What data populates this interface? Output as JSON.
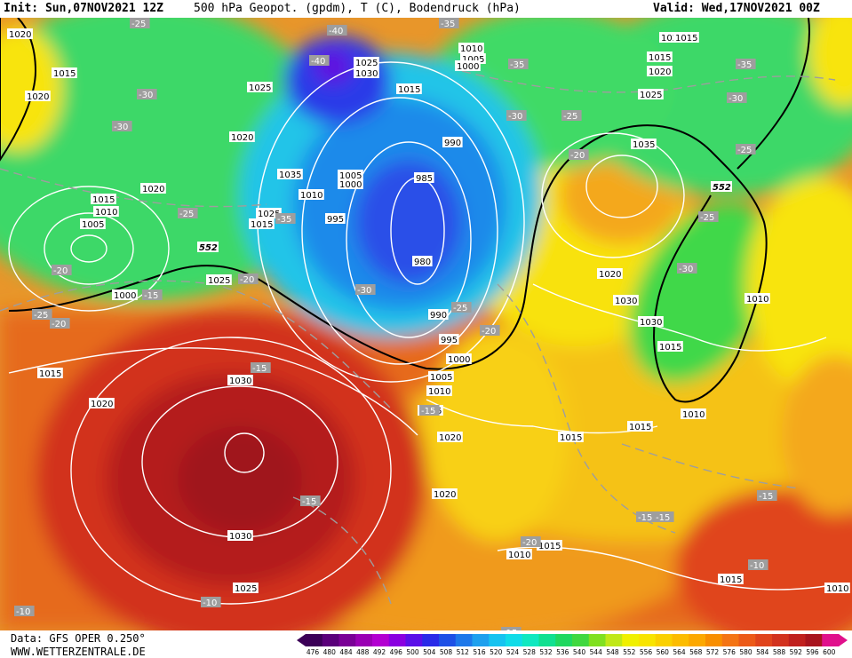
{
  "header": {
    "init": "Init: Sun,07NOV2021 12Z",
    "title": "500 hPa Geopot. (gpdm), T (C), Bodendruck (hPa)",
    "valid": "Valid: Wed,17NOV2021 00Z"
  },
  "footer": {
    "data_source": "Data: GFS OPER 0.250°",
    "website": "WWW.WETTERZENTRALE.DE"
  },
  "legend": {
    "levels": [
      "476",
      "480",
      "484",
      "488",
      "492",
      "496",
      "500",
      "504",
      "508",
      "512",
      "516",
      "520",
      "524",
      "528",
      "532",
      "536",
      "540",
      "544",
      "548",
      "552",
      "556",
      "560",
      "564",
      "568",
      "572",
      "576",
      "580",
      "584",
      "588",
      "592",
      "596",
      "600"
    ],
    "colors": [
      "#3b0057",
      "#5a007a",
      "#7a0096",
      "#9a00b4",
      "#b300d1",
      "#8a00e0",
      "#5a10e8",
      "#2a2ae8",
      "#1e50e6",
      "#1e78ea",
      "#1ea0ee",
      "#16c3f0",
      "#10dce8",
      "#10e8c0",
      "#10e090",
      "#20d860",
      "#40d840",
      "#80e020",
      "#c0e818",
      "#f0f000",
      "#f8e400",
      "#fad000",
      "#fcbc00",
      "#fca800",
      "#f88e00",
      "#f47414",
      "#ec5a18",
      "#e0441c",
      "#d2321e",
      "#c0201e",
      "#a8141e",
      "#e0108c"
    ]
  },
  "map": {
    "contour_552_label": "552",
    "pressure_labels": [
      {
        "t": "1010"
      },
      {
        "t": "1015"
      },
      {
        "t": "1020"
      },
      {
        "t": "1025"
      },
      {
        "t": "1020"
      },
      {
        "t": "1015"
      },
      {
        "t": "1010"
      },
      {
        "t": "1005"
      },
      {
        "t": "1000"
      },
      {
        "t": "1020"
      },
      {
        "t": "1025"
      },
      {
        "t": "1015"
      },
      {
        "t": "1025"
      },
      {
        "t": "1030"
      },
      {
        "t": "1025"
      },
      {
        "t": "1020"
      },
      {
        "t": "1035"
      },
      {
        "t": "1005"
      },
      {
        "t": "1000"
      },
      {
        "t": "1010"
      },
      {
        "t": "995"
      },
      {
        "t": "1010"
      },
      {
        "t": "1005"
      },
      {
        "t": "1000"
      },
      {
        "t": "1015"
      },
      {
        "t": "990"
      },
      {
        "t": "985"
      },
      {
        "t": "980"
      },
      {
        "t": "990"
      },
      {
        "t": "995"
      },
      {
        "t": "1000"
      },
      {
        "t": "1005"
      },
      {
        "t": "1010"
      },
      {
        "t": "1015"
      },
      {
        "t": "1020"
      },
      {
        "t": "1015"
      },
      {
        "t": "1020"
      },
      {
        "t": "1025"
      },
      {
        "t": "1030"
      },
      {
        "t": "1035"
      },
      {
        "t": "1030"
      },
      {
        "t": "1025"
      },
      {
        "t": "1020"
      },
      {
        "t": "1015"
      },
      {
        "t": "1010"
      },
      {
        "t": "1010"
      },
      {
        "t": "1015"
      },
      {
        "t": "1015"
      },
      {
        "t": "1020"
      },
      {
        "t": "1015"
      },
      {
        "t": "1010"
      },
      {
        "t": "1015"
      },
      {
        "t": "1015"
      },
      {
        "t": "1010"
      },
      {
        "t": "1020"
      },
      {
        "t": "1030"
      },
      {
        "t": "1030"
      },
      {
        "t": "1025"
      },
      {
        "t": "1020"
      },
      {
        "t": "1005"
      },
      {
        "t": "1015"
      }
    ],
    "temperature_labels": [
      {
        "t": "-25"
      },
      {
        "t": "-30"
      },
      {
        "t": "-30"
      },
      {
        "t": "-25"
      },
      {
        "t": "-20"
      },
      {
        "t": "-25"
      },
      {
        "t": "-20"
      },
      {
        "t": "-15"
      },
      {
        "t": "-20"
      },
      {
        "t": "-40"
      },
      {
        "t": "-40"
      },
      {
        "t": "-35"
      },
      {
        "t": "-35"
      },
      {
        "t": "-30"
      },
      {
        "t": "-25"
      },
      {
        "t": "-35"
      },
      {
        "t": "-30"
      },
      {
        "t": "-25"
      },
      {
        "t": "-20"
      },
      {
        "t": "-15"
      },
      {
        "t": "-35"
      },
      {
        "t": "-30"
      },
      {
        "t": "-25"
      },
      {
        "t": "-20"
      },
      {
        "t": "-25"
      },
      {
        "t": "-30"
      },
      {
        "t": "-15"
      },
      {
        "t": "-15"
      },
      {
        "t": "-15"
      },
      {
        "t": "-20"
      },
      {
        "t": "-15"
      },
      {
        "t": "-15"
      },
      {
        "t": "-10"
      },
      {
        "t": "-10"
      },
      {
        "t": "-10"
      },
      {
        "t": "-15"
      },
      {
        "t": "-15"
      },
      {
        "t": "-20"
      }
    ]
  }
}
